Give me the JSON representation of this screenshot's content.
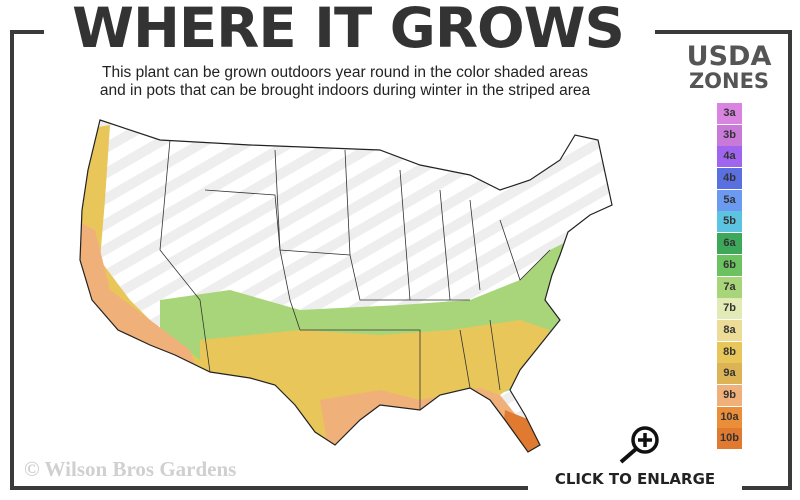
{
  "title": "WHERE IT GROWS",
  "subtitle": {
    "line1": "This plant can be grown outdoors year round in the color shaded areas",
    "line2": "and in pots that can be brought indoors during winter in the striped area"
  },
  "legend": {
    "title_line1": "USDA",
    "title_line2": "ZONES",
    "zones": [
      {
        "label": "3a",
        "color": "#d884e0"
      },
      {
        "label": "3b",
        "color": "#c97ad9"
      },
      {
        "label": "4a",
        "color": "#a065ee"
      },
      {
        "label": "4b",
        "color": "#5a6fe0"
      },
      {
        "label": "5a",
        "color": "#6c9af0"
      },
      {
        "label": "5b",
        "color": "#5cc4e0"
      },
      {
        "label": "6a",
        "color": "#3ea85a"
      },
      {
        "label": "6b",
        "color": "#6cc160"
      },
      {
        "label": "7a",
        "color": "#a9d57a"
      },
      {
        "label": "7b",
        "color": "#e2ebb6"
      },
      {
        "label": "8a",
        "color": "#ecdc98"
      },
      {
        "label": "8b",
        "color": "#e8c65a"
      },
      {
        "label": "9a",
        "color": "#dcb456"
      },
      {
        "label": "9b",
        "color": "#f0b07a"
      },
      {
        "label": "10a",
        "color": "#ea8e3a"
      },
      {
        "label": "10b",
        "color": "#e07a30"
      }
    ]
  },
  "map": {
    "outdoor_zones_colors": [
      "#a9d57a",
      "#e8c65a",
      "#f0b07a",
      "#e07a30"
    ],
    "striped_area_meaning": "pots indoors during winter"
  },
  "copyright": "© Wilson Bros Gardens",
  "enlarge_label": "CLICK TO ENLARGE",
  "icons": {
    "zoom": "magnifier-plus-icon"
  }
}
